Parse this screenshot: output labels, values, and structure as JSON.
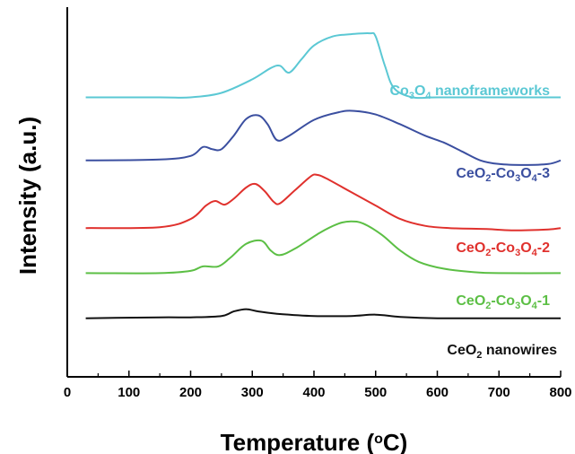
{
  "chart_data": {
    "type": "line",
    "xlabel": "Temperature (",
    "xlabel_sup": "o",
    "xlabel_end": "C)",
    "ylabel": "Intensity (a.u.)",
    "xlim": [
      0,
      800
    ],
    "x_ticks": [
      0,
      100,
      200,
      300,
      400,
      500,
      600,
      700,
      800
    ],
    "y_ticks_shown": false,
    "grid": false,
    "series": [
      {
        "key": "co3o4",
        "label_parts": [
          [
            "Co",
            ""
          ],
          [
            "3",
            "sub"
          ],
          [
            "O",
            ""
          ],
          [
            "4",
            "sub"
          ],
          [
            " nanoframeworks",
            ""
          ]
        ],
        "color": "#5bc8d4",
        "baseline": 6.2,
        "points": [
          [
            30,
            6.2
          ],
          [
            150,
            6.2
          ],
          [
            200,
            6.2
          ],
          [
            250,
            6.3
          ],
          [
            300,
            6.6
          ],
          [
            330,
            6.85
          ],
          [
            345,
            6.9
          ],
          [
            360,
            6.75
          ],
          [
            380,
            7.05
          ],
          [
            400,
            7.35
          ],
          [
            430,
            7.55
          ],
          [
            460,
            7.6
          ],
          [
            490,
            7.62
          ],
          [
            500,
            7.55
          ],
          [
            515,
            6.9
          ],
          [
            530,
            6.4
          ],
          [
            560,
            6.2
          ],
          [
            600,
            6.2
          ],
          [
            700,
            6.2
          ],
          [
            800,
            6.2
          ]
        ]
      },
      {
        "key": "ceo2_co3o4_3",
        "label_parts": [
          [
            "CeO",
            ""
          ],
          [
            "2",
            "sub"
          ],
          [
            "-Co",
            ""
          ],
          [
            "3",
            "sub"
          ],
          [
            "O",
            ""
          ],
          [
            "4",
            "sub"
          ],
          [
            "-3",
            ""
          ]
        ],
        "color": "#3b4fa0",
        "baseline": 4.8,
        "points": [
          [
            30,
            4.8
          ],
          [
            150,
            4.82
          ],
          [
            200,
            4.9
          ],
          [
            220,
            5.1
          ],
          [
            235,
            5.05
          ],
          [
            250,
            5.05
          ],
          [
            270,
            5.35
          ],
          [
            290,
            5.72
          ],
          [
            310,
            5.8
          ],
          [
            325,
            5.6
          ],
          [
            340,
            5.25
          ],
          [
            360,
            5.35
          ],
          [
            400,
            5.7
          ],
          [
            440,
            5.87
          ],
          [
            465,
            5.9
          ],
          [
            500,
            5.82
          ],
          [
            540,
            5.6
          ],
          [
            580,
            5.35
          ],
          [
            610,
            5.2
          ],
          [
            640,
            5.0
          ],
          [
            670,
            4.8
          ],
          [
            700,
            4.72
          ],
          [
            740,
            4.7
          ],
          [
            780,
            4.72
          ],
          [
            800,
            4.8
          ]
        ]
      },
      {
        "key": "ceo2_co3o4_2",
        "label_parts": [
          [
            "CeO",
            ""
          ],
          [
            "2",
            "sub"
          ],
          [
            "-Co",
            ""
          ],
          [
            "3",
            "sub"
          ],
          [
            "O",
            ""
          ],
          [
            "4",
            "sub"
          ],
          [
            "-2",
            ""
          ]
        ],
        "color": "#e0312d",
        "baseline": 3.3,
        "points": [
          [
            30,
            3.3
          ],
          [
            150,
            3.32
          ],
          [
            200,
            3.5
          ],
          [
            225,
            3.8
          ],
          [
            240,
            3.9
          ],
          [
            255,
            3.82
          ],
          [
            270,
            3.95
          ],
          [
            290,
            4.2
          ],
          [
            305,
            4.28
          ],
          [
            320,
            4.12
          ],
          [
            335,
            3.88
          ],
          [
            345,
            3.85
          ],
          [
            370,
            4.15
          ],
          [
            395,
            4.45
          ],
          [
            405,
            4.48
          ],
          [
            420,
            4.4
          ],
          [
            460,
            4.1
          ],
          [
            500,
            3.8
          ],
          [
            540,
            3.5
          ],
          [
            580,
            3.35
          ],
          [
            620,
            3.3
          ],
          [
            680,
            3.28
          ],
          [
            720,
            3.25
          ],
          [
            780,
            3.27
          ],
          [
            800,
            3.3
          ]
        ]
      },
      {
        "key": "ceo2_co3o4_1",
        "label_parts": [
          [
            "CeO",
            ""
          ],
          [
            "2",
            "sub"
          ],
          [
            "-Co",
            ""
          ],
          [
            "3",
            "sub"
          ],
          [
            "O",
            ""
          ],
          [
            "4",
            "sub"
          ],
          [
            "-1",
            ""
          ]
        ],
        "color": "#5cbf45",
        "baseline": 2.3,
        "points": [
          [
            30,
            2.3
          ],
          [
            150,
            2.3
          ],
          [
            200,
            2.35
          ],
          [
            220,
            2.45
          ],
          [
            245,
            2.45
          ],
          [
            265,
            2.65
          ],
          [
            290,
            2.95
          ],
          [
            315,
            3.02
          ],
          [
            330,
            2.8
          ],
          [
            345,
            2.7
          ],
          [
            370,
            2.85
          ],
          [
            410,
            3.2
          ],
          [
            440,
            3.4
          ],
          [
            460,
            3.45
          ],
          [
            480,
            3.4
          ],
          [
            510,
            3.15
          ],
          [
            540,
            2.8
          ],
          [
            570,
            2.55
          ],
          [
            610,
            2.4
          ],
          [
            660,
            2.32
          ],
          [
            700,
            2.3
          ],
          [
            800,
            2.3
          ]
        ]
      },
      {
        "key": "ceo2",
        "label_parts": [
          [
            "CeO",
            ""
          ],
          [
            "2",
            "sub"
          ],
          [
            " nanowires",
            ""
          ]
        ],
        "color": "#111111",
        "baseline": 1.3,
        "points": [
          [
            30,
            1.3
          ],
          [
            150,
            1.32
          ],
          [
            200,
            1.32
          ],
          [
            250,
            1.35
          ],
          [
            270,
            1.45
          ],
          [
            290,
            1.5
          ],
          [
            310,
            1.45
          ],
          [
            340,
            1.4
          ],
          [
            400,
            1.35
          ],
          [
            460,
            1.35
          ],
          [
            500,
            1.38
          ],
          [
            540,
            1.33
          ],
          [
            600,
            1.3
          ],
          [
            700,
            1.3
          ],
          [
            800,
            1.3
          ]
        ]
      }
    ]
  }
}
